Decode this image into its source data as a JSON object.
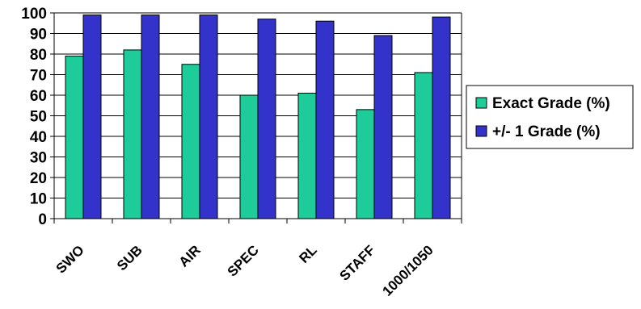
{
  "chart_data": {
    "type": "bar",
    "categories": [
      "SWO",
      "SUB",
      "AIR",
      "SPEC",
      "RL",
      "STAFF",
      "1000/1050"
    ],
    "series": [
      {
        "name": "Exact Grade (%)",
        "color": "#1ECC99",
        "values": [
          79,
          82,
          75,
          60,
          61,
          53,
          71
        ]
      },
      {
        "name": "+/- 1 Grade (%)",
        "color": "#3333CC",
        "values": [
          99,
          99,
          99,
          97,
          96,
          89,
          98
        ]
      }
    ],
    "ylim": [
      0,
      100
    ],
    "yticks": [
      0,
      10,
      20,
      30,
      40,
      50,
      60,
      70,
      80,
      90,
      100
    ],
    "grid": true,
    "legend": "right",
    "title": "",
    "xlabel": "",
    "ylabel": ""
  }
}
